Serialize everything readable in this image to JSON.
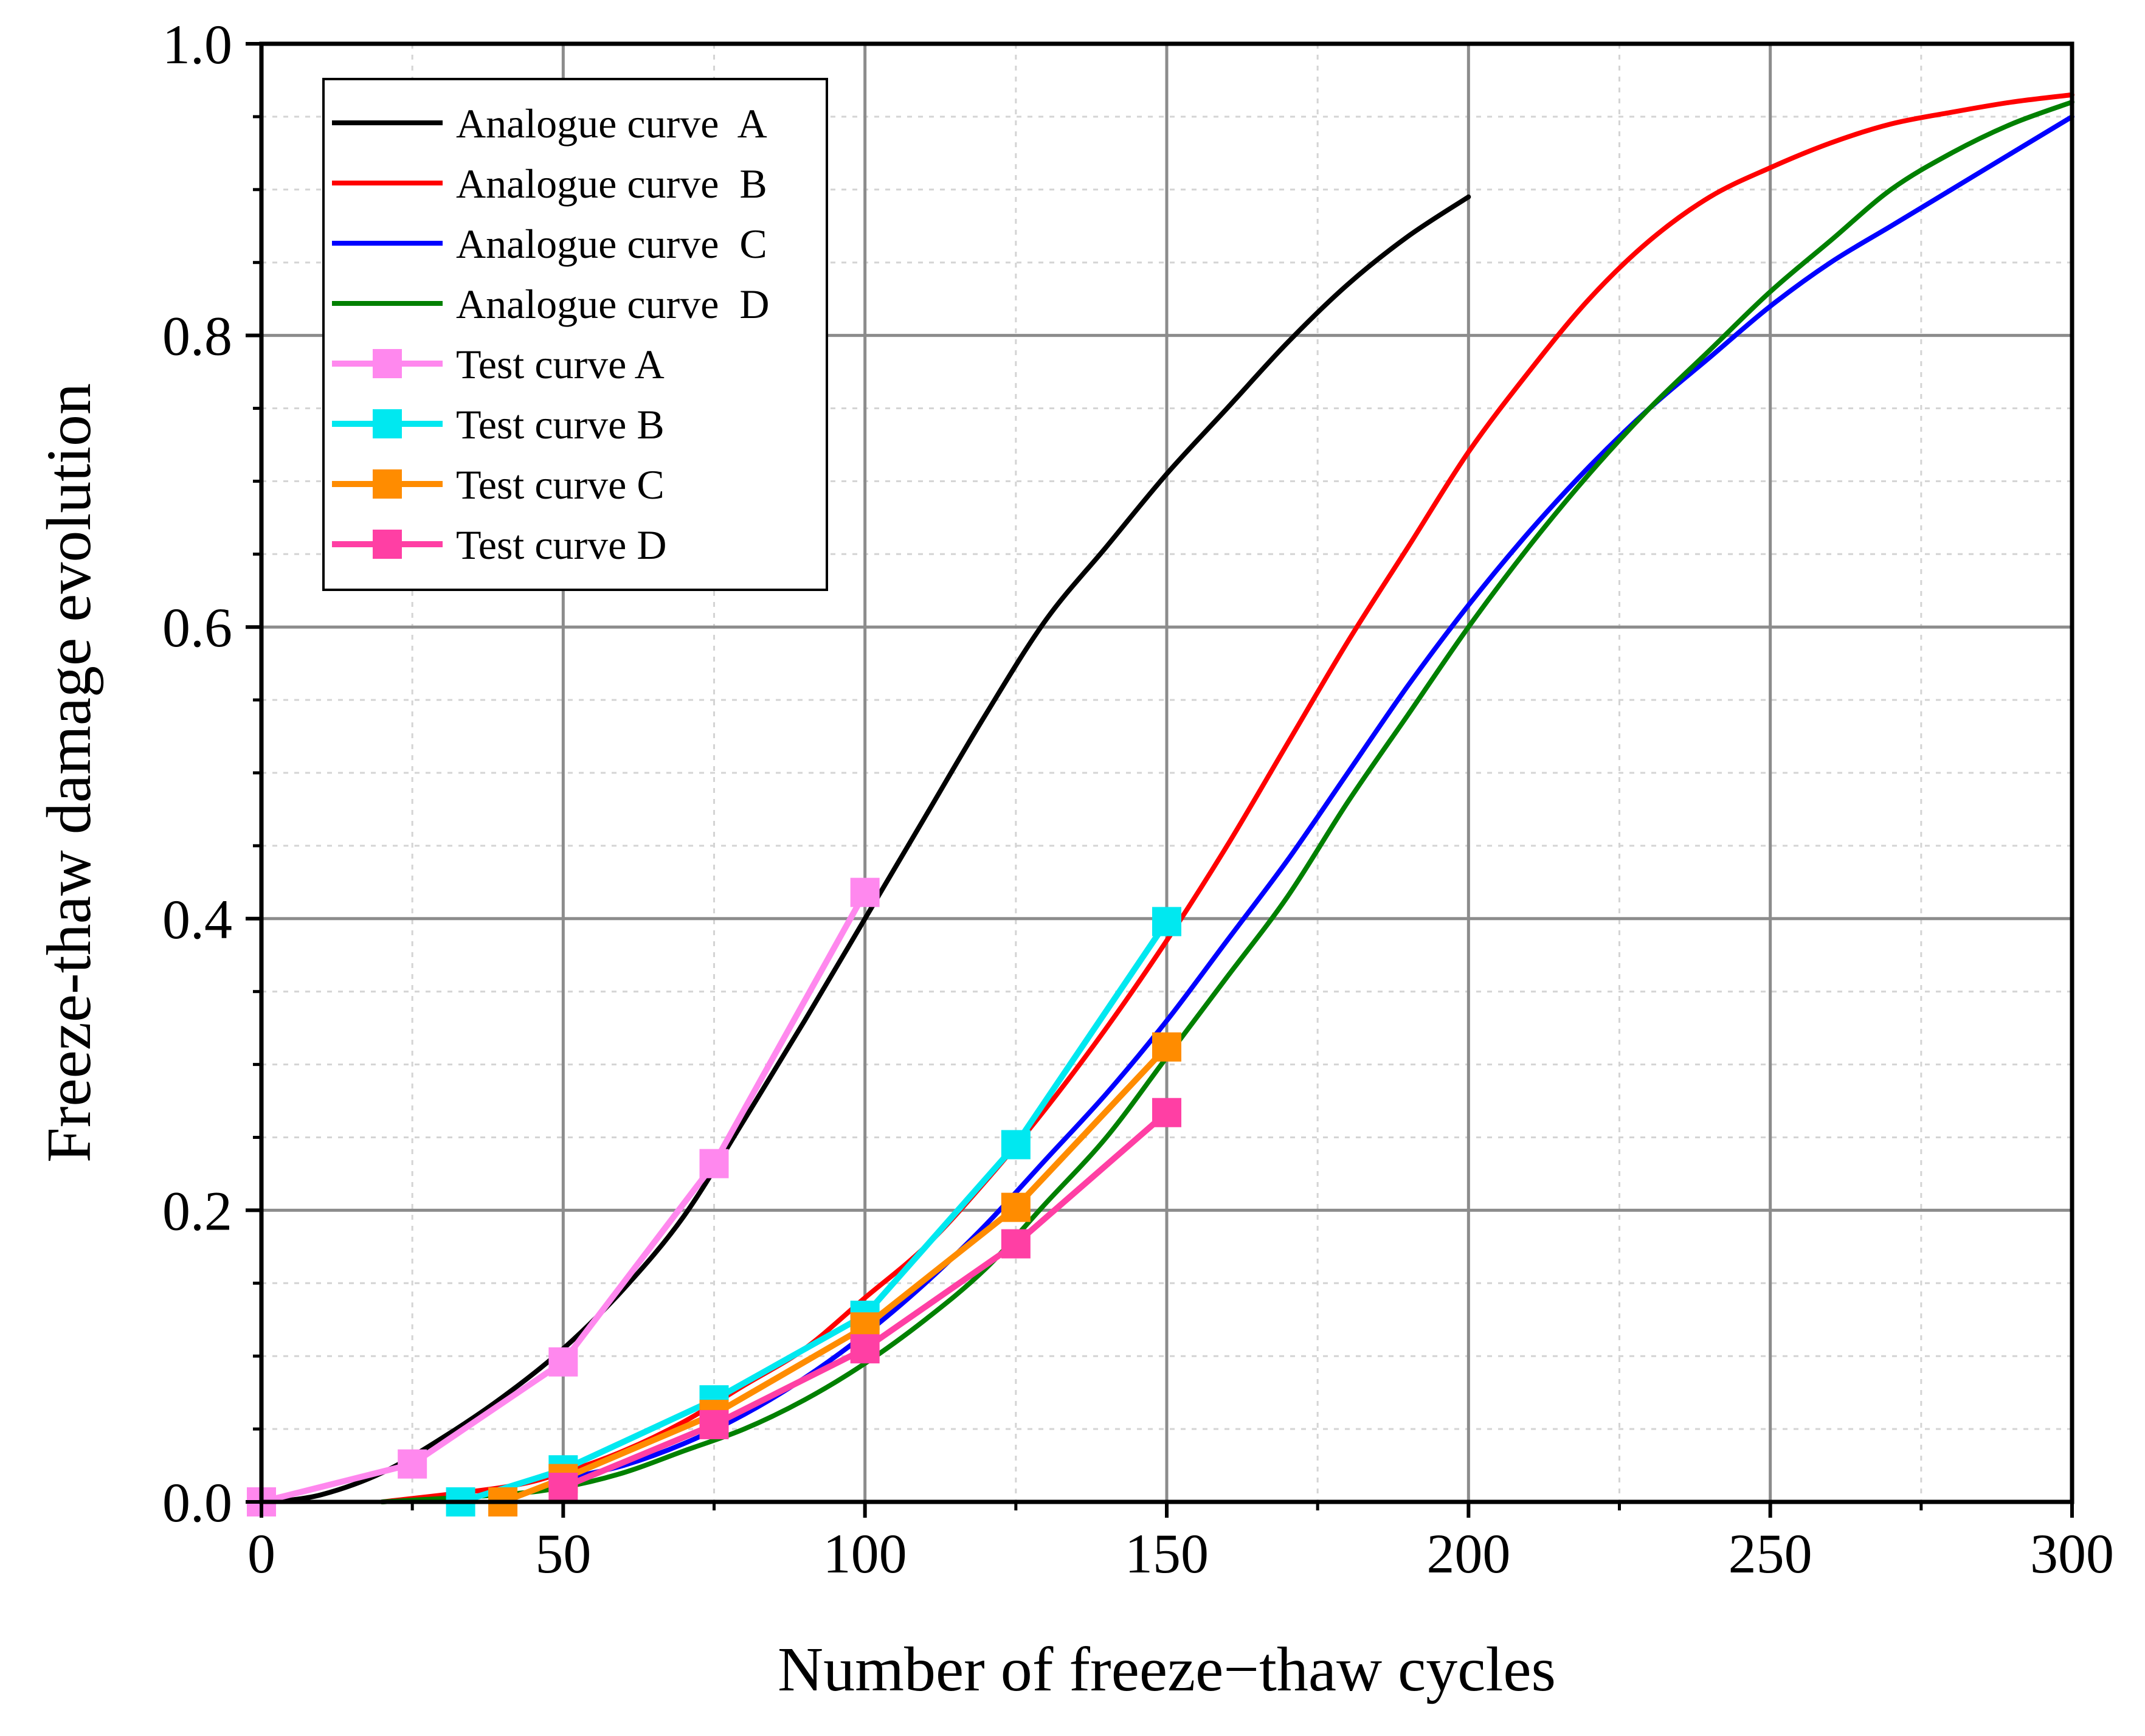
{
  "chart_data": {
    "type": "line",
    "title": "",
    "xlabel": "Number of freeze−thaw cycles",
    "ylabel": "Freeze-thaw damage evolution",
    "xlim": [
      0,
      300
    ],
    "ylim": [
      0,
      1.0
    ],
    "x_ticks": [
      0,
      50,
      100,
      150,
      200,
      250,
      300
    ],
    "y_ticks": [
      0.0,
      0.2,
      0.4,
      0.6,
      0.8,
      1.0
    ],
    "x_tick_labels": [
      "0",
      "50",
      "100",
      "150",
      "200",
      "250",
      "300"
    ],
    "y_tick_labels": [
      "0.0",
      "0.2",
      "0.4",
      "0.6",
      "0.8",
      "1.0"
    ],
    "grid": true,
    "legend_position": "top-left",
    "series": [
      {
        "name": "Analogue curve  A",
        "kind": "line",
        "color": "#000000",
        "x": [
          2,
          10,
          20,
          30,
          40,
          50,
          60,
          70,
          80,
          90,
          100,
          110,
          120,
          130,
          140,
          150,
          160,
          170,
          180,
          190,
          200
        ],
        "y": [
          0.0,
          0.005,
          0.02,
          0.044,
          0.072,
          0.105,
          0.146,
          0.196,
          0.262,
          0.33,
          0.4,
          0.47,
          0.54,
          0.605,
          0.655,
          0.705,
          0.75,
          0.795,
          0.835,
          0.868,
          0.895
        ]
      },
      {
        "name": "Analogue curve  B",
        "kind": "line",
        "color": "#ff0000",
        "x": [
          20,
          40,
          50,
          60,
          70,
          80,
          90,
          100,
          110,
          120,
          130,
          140,
          150,
          160,
          170,
          180,
          190,
          200,
          210,
          220,
          230,
          240,
          250,
          260,
          270,
          280,
          290,
          300
        ],
        "y": [
          0.0,
          0.01,
          0.02,
          0.035,
          0.055,
          0.08,
          0.105,
          0.14,
          0.175,
          0.22,
          0.27,
          0.325,
          0.385,
          0.45,
          0.52,
          0.59,
          0.655,
          0.72,
          0.775,
          0.825,
          0.865,
          0.895,
          0.915,
          0.932,
          0.945,
          0.953,
          0.96,
          0.965
        ]
      },
      {
        "name": "Analogue curve  C",
        "kind": "line",
        "color": "#0000ff",
        "x": [
          40,
          50,
          60,
          70,
          80,
          90,
          100,
          110,
          120,
          130,
          140,
          150,
          160,
          170,
          180,
          190,
          200,
          210,
          220,
          230,
          240,
          250,
          260,
          270,
          280,
          290,
          300
        ],
        "y": [
          0.0,
          0.015,
          0.025,
          0.04,
          0.06,
          0.085,
          0.115,
          0.15,
          0.19,
          0.235,
          0.28,
          0.33,
          0.385,
          0.44,
          0.5,
          0.56,
          0.615,
          0.665,
          0.71,
          0.75,
          0.785,
          0.82,
          0.85,
          0.875,
          0.9,
          0.925,
          0.95
        ]
      },
      {
        "name": "Analogue curve  D",
        "kind": "line",
        "color": "#008000",
        "x": [
          20,
          40,
          50,
          60,
          70,
          80,
          90,
          100,
          110,
          120,
          130,
          140,
          150,
          160,
          170,
          180,
          190,
          200,
          210,
          220,
          230,
          240,
          250,
          260,
          270,
          280,
          290,
          300
        ],
        "y": [
          0.0,
          0.005,
          0.01,
          0.02,
          0.035,
          0.05,
          0.07,
          0.095,
          0.125,
          0.16,
          0.205,
          0.25,
          0.305,
          0.36,
          0.415,
          0.48,
          0.54,
          0.6,
          0.655,
          0.705,
          0.75,
          0.79,
          0.83,
          0.865,
          0.9,
          0.925,
          0.945,
          0.96
        ]
      },
      {
        "name": "Test curve A",
        "kind": "line-marker",
        "color": "#ff88ee",
        "x": [
          0,
          25,
          50,
          75,
          100
        ],
        "y": [
          0.0,
          0.026,
          0.096,
          0.232,
          0.418
        ]
      },
      {
        "name": "Test curve B",
        "kind": "line-marker",
        "color": "#00e8f0",
        "x": [
          33,
          50,
          75,
          100,
          125,
          150
        ],
        "y": [
          0.0,
          0.022,
          0.07,
          0.128,
          0.245,
          0.398
        ]
      },
      {
        "name": "Test curve C",
        "kind": "line-marker",
        "color": "#ff8c00",
        "x": [
          40,
          50,
          75,
          100,
          125,
          150
        ],
        "y": [
          0.0,
          0.016,
          0.06,
          0.12,
          0.202,
          0.312
        ]
      },
      {
        "name": "Test curve D",
        "kind": "line-marker",
        "color": "#ff3fa4",
        "x": [
          50,
          75,
          100,
          125,
          150
        ],
        "y": [
          0.01,
          0.053,
          0.105,
          0.177,
          0.267
        ]
      }
    ]
  }
}
